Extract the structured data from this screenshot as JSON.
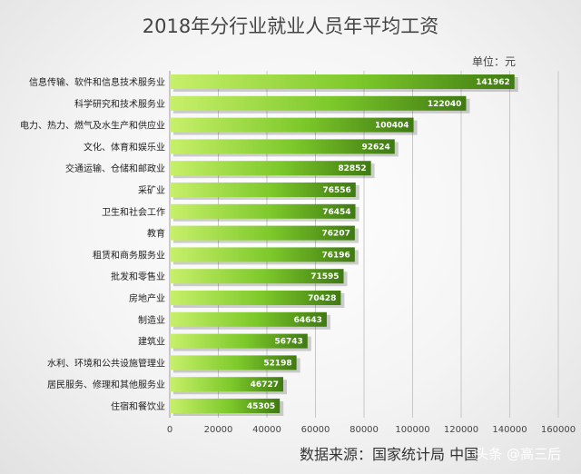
{
  "chart_data": {
    "type": "bar",
    "orientation": "horizontal",
    "title": "2018年分行业就业人员年平均工资",
    "unit_label": "单位：元",
    "source": "数据来源：国家统计局 中国",
    "watermark": "头条 @高三后",
    "categories": [
      "信息传输、软件和信息技术服务业",
      "科学研究和技术服务业",
      "电力、热力、燃气及水生产和供应业",
      "文化、体育和娱乐业",
      "交通运输、仓储和邮政业",
      "采矿业",
      "卫生和社会工作",
      "教育",
      "租赁和商务服务业",
      "批发和零售业",
      "房地产业",
      "制造业",
      "建筑业",
      "水利、环境和公共设施管理业",
      "居民服务、修理和其他服务业",
      "住宿和餐饮业"
    ],
    "values": [
      141962,
      122040,
      100404,
      92624,
      82852,
      76556,
      76454,
      76207,
      76196,
      71595,
      70428,
      64643,
      56743,
      52198,
      46727,
      45305
    ],
    "xlim": [
      0,
      160000
    ],
    "xticks": [
      0,
      20000,
      40000,
      60000,
      80000,
      100000,
      120000,
      140000,
      160000
    ],
    "grid": true,
    "bar_color": "#6fc023",
    "bar_color_dark": "#3f7a12"
  }
}
